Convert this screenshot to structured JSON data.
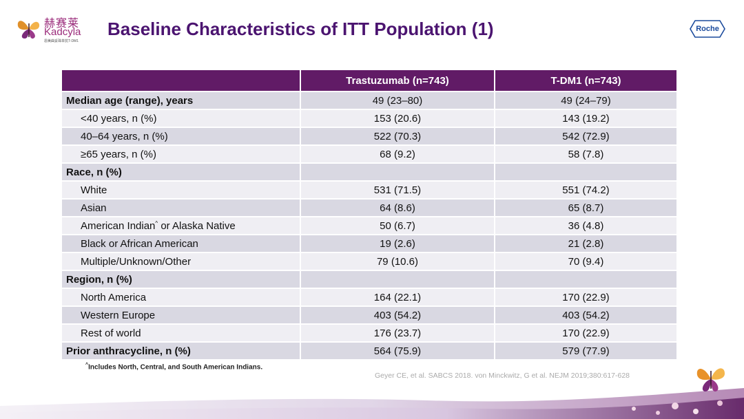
{
  "logo": {
    "brand_cn": "赫赛莱",
    "brand_en": "Kadcyla",
    "tagline": "恩美曲妥珠单抗T-DM1"
  },
  "slide": {
    "title": "Baseline Characteristics of ITT Population (1)"
  },
  "roche_logo": {
    "text": "Roche"
  },
  "table": {
    "headers": [
      "",
      "Trastuzumab (n=743)",
      "T-DM1 (n=743)"
    ],
    "rows": [
      {
        "label": "Median age (range), years",
        "trastuzumab": "49 (23–80)",
        "tdm1": "49 (24–79)"
      },
      {
        "label": "<40 years, n (%)",
        "trastuzumab": "153 (20.6)",
        "tdm1": "143 (19.2)"
      },
      {
        "label": "40–64 years, n (%)",
        "trastuzumab": "522 (70.3)",
        "tdm1": "542 (72.9)"
      },
      {
        "label": "≥65 years, n (%)",
        "trastuzumab": "68 (9.2)",
        "tdm1": "58 (7.8)"
      },
      {
        "label": "Race, n (%)",
        "trastuzumab": "",
        "tdm1": ""
      },
      {
        "label": "White",
        "trastuzumab": "531 (71.5)",
        "tdm1": "551 (74.2)"
      },
      {
        "label": "Asian",
        "trastuzumab": "64 (8.6)",
        "tdm1": "65 (8.7)"
      },
      {
        "label": "American Indian",
        "label_sup": "^",
        "label_rest": " or Alaska Native",
        "trastuzumab": "50 (6.7)",
        "tdm1": "36 (4.8)"
      },
      {
        "label": "Black or African American",
        "trastuzumab": "19 (2.6)",
        "tdm1": "21 (2.8)"
      },
      {
        "label": "Multiple/Unknown/Other",
        "trastuzumab": "79 (10.6)",
        "tdm1": "70 (9.4)"
      },
      {
        "label": "Region, n (%)",
        "trastuzumab": "",
        "tdm1": ""
      },
      {
        "label": "North America",
        "trastuzumab": "164 (22.1)",
        "tdm1": "170 (22.9)"
      },
      {
        "label": "Western Europe",
        "trastuzumab": "403 (54.2)",
        "tdm1": "403 (54.2)"
      },
      {
        "label": "Rest of world",
        "trastuzumab": "176 (23.7)",
        "tdm1": "170 (22.9)"
      },
      {
        "label": "Prior anthracycline, n (%)",
        "trastuzumab": "564 (75.9)",
        "tdm1": "579 (77.9)"
      }
    ]
  },
  "footnote": {
    "sup": "^",
    "text": "Includes North, Central, and South American Indians."
  },
  "citation": "Geyer CE, et al.  SABCS 2018. von Minckwitz, G et al. NEJM 2019;380:617-628",
  "colors": {
    "header_bg": "#611b66",
    "title": "#4b1470",
    "row_odd": "#d9d8e2",
    "row_even": "#efeef3"
  }
}
